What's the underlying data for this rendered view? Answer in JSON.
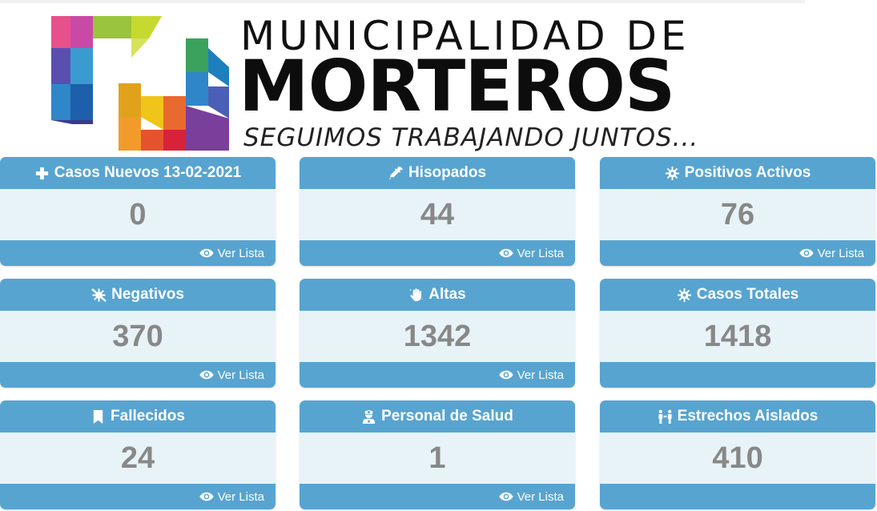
{
  "header": {
    "line1": "MUNICIPALIDAD  DE",
    "line2": "MORTEROS",
    "tagline": "SEGUIMOS TRABAJANDO JUNTOS..."
  },
  "colors": {
    "card_header": "#57a4d1",
    "card_body": "#e8f3f8",
    "value_text": "#888888"
  },
  "cards": [
    {
      "title": "Casos Nuevos 13-02-2021",
      "icon": "plus-icon",
      "value": "0",
      "link": "Ver Lista"
    },
    {
      "title": "Hisopados",
      "icon": "syringe-icon",
      "value": "44",
      "link": "Ver Lista"
    },
    {
      "title": "Positivos Activos",
      "icon": "virus-icon",
      "value": "76",
      "link": "Ver Lista"
    },
    {
      "title": "Negativos",
      "icon": "virus-slash-icon",
      "value": "370",
      "link": "Ver Lista"
    },
    {
      "title": "Altas",
      "icon": "hand-sparkles-icon",
      "value": "1342",
      "link": "Ver Lista"
    },
    {
      "title": "Casos Totales",
      "icon": "virus-icon",
      "value": "1418"
    },
    {
      "title": "Fallecidos",
      "icon": "bookmark-icon",
      "value": "24",
      "link": "Ver Lista"
    },
    {
      "title": "Personal de Salud",
      "icon": "user-nurse-icon",
      "value": "1",
      "link": "Ver Lista"
    },
    {
      "title": "Estrechos Aislados",
      "icon": "people-arrows-icon",
      "value": "410"
    }
  ]
}
